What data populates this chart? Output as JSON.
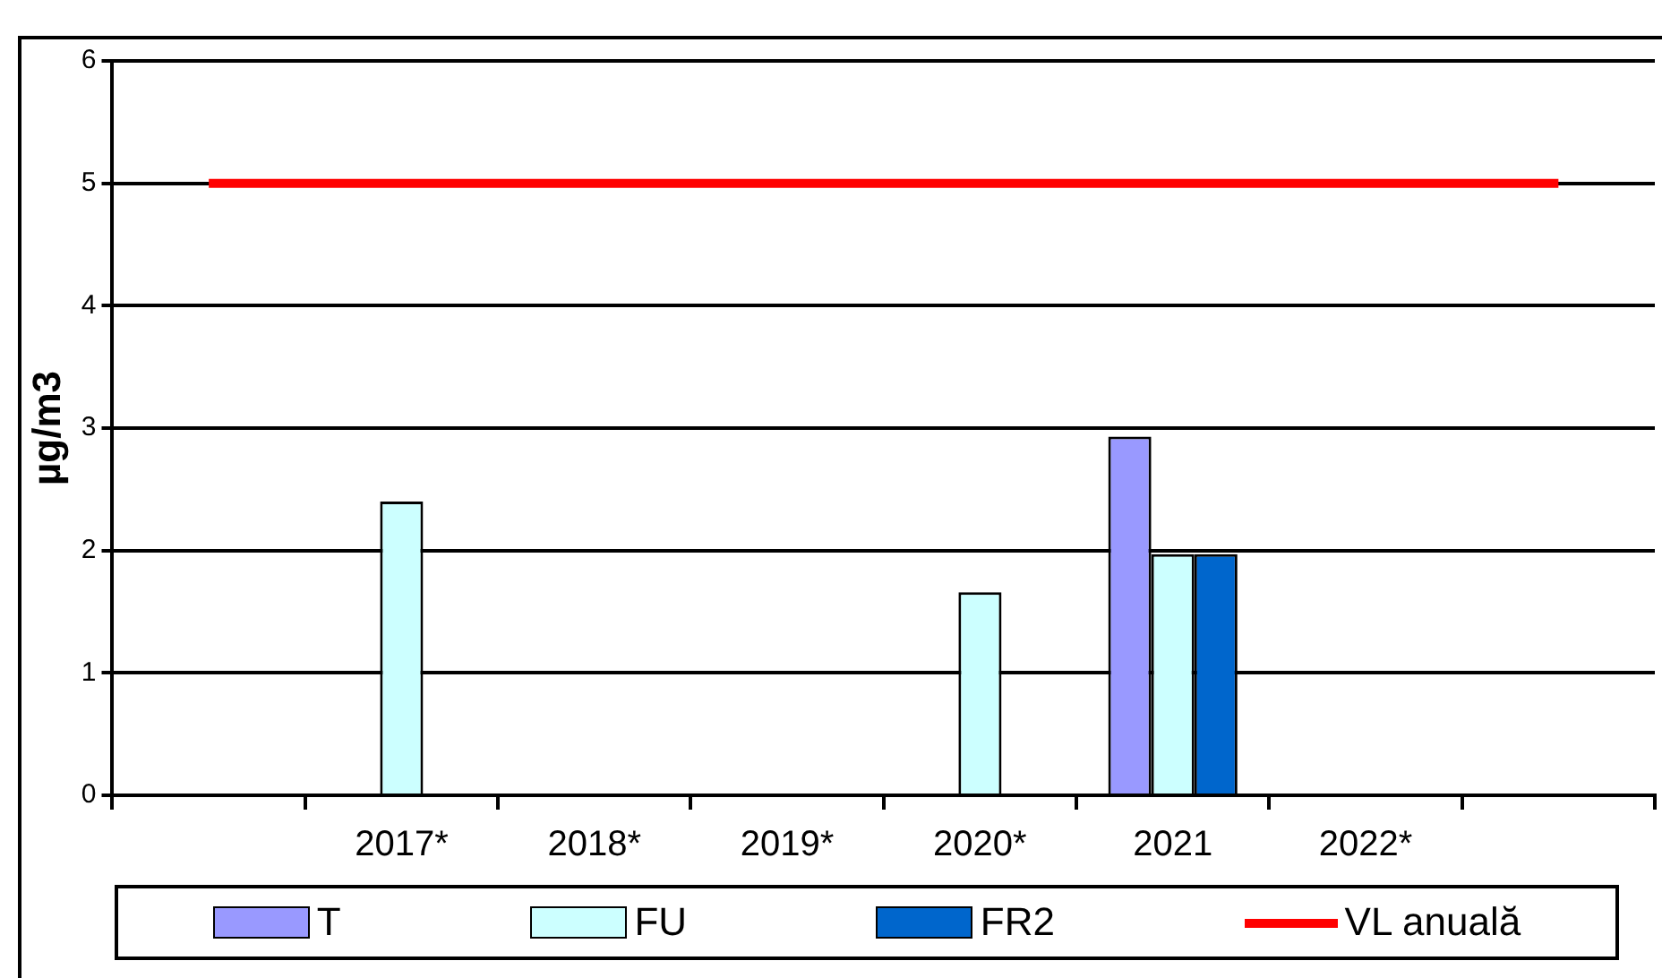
{
  "chart_data": {
    "type": "bar",
    "ylabel": "µg/m3",
    "categories": [
      null,
      "2017*",
      "2018*",
      "2019*",
      "2020*",
      "2021",
      "2022*",
      null
    ],
    "series": [
      {
        "name": "T",
        "color": "#9999ff",
        "values": [
          null,
          null,
          null,
          null,
          null,
          2.93,
          null,
          null
        ]
      },
      {
        "name": "FU",
        "color": "#ccffff",
        "values": [
          null,
          2.4,
          null,
          null,
          1.66,
          1.97,
          null,
          null
        ]
      },
      {
        "name": "FR2",
        "color": "#0066cc",
        "values": [
          null,
          null,
          null,
          null,
          null,
          1.97,
          null,
          null
        ]
      },
      {
        "name": "VL anuală",
        "type": "line",
        "color": "#ff0000",
        "values": [
          5,
          5,
          5,
          5,
          5,
          5,
          5,
          5
        ]
      }
    ],
    "ylim": [
      0,
      6
    ],
    "yticks": [
      0,
      1,
      2,
      3,
      4,
      5,
      6
    ],
    "grid": "y",
    "legend": "bottom"
  }
}
